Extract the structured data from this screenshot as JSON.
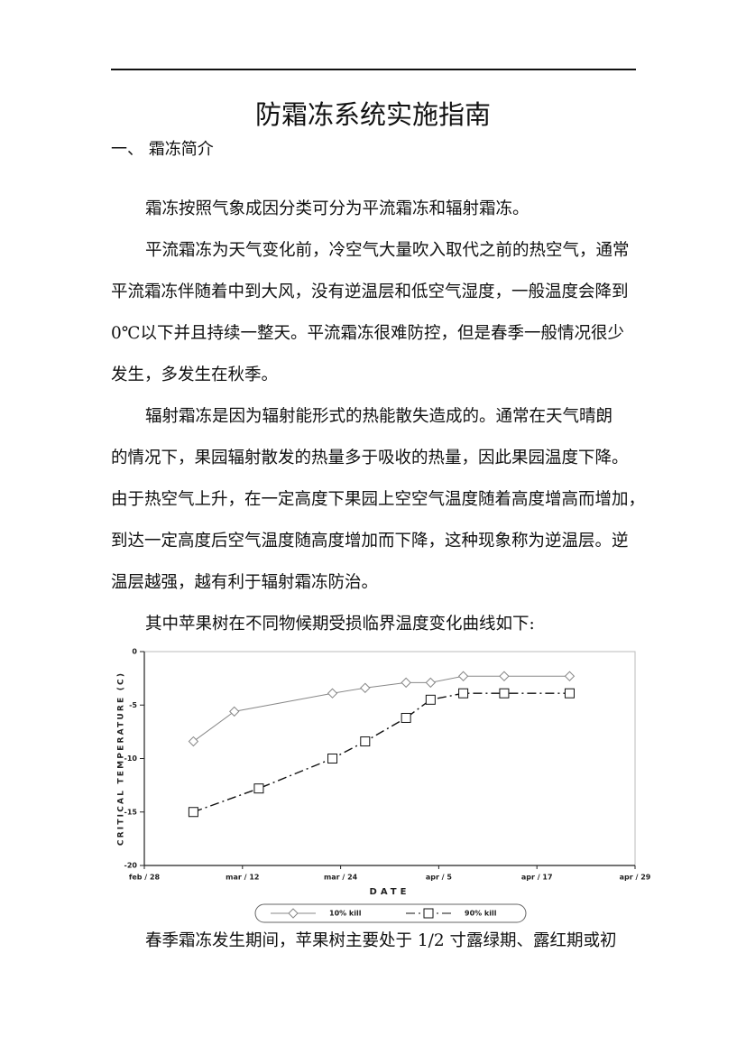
{
  "header": {
    "title": "防霜冻系统实施指南"
  },
  "section": {
    "heading": "一、 霜冻简介"
  },
  "paragraphs": [
    [
      "霜冻按照气象成因分类可分为平流霜冻和辐射霜冻。"
    ],
    [
      "平流霜冻为天气变化前，冷空气大量吹入取代之前的热空气，通常",
      "平流霜冻伴随着中到大风，没有逆温层和低空气湿度，一般温度会降到",
      "0℃以下并且持续一整天。平流霜冻很难防控，但是春季一般情况很少",
      "发生，多发生在秋季。"
    ],
    [
      "辐射霜冻是因为辐射能形式的热能散失造成的。通常在天气晴朗",
      "的情况下，果园辐射散发的热量多于吸收的热量，因此果园温度下降。",
      "由于热空气上升，在一定高度下果园上空空气温度随着高度增高而增加，",
      "到达一定高度后空气温度随高度增加而下降，这种现象称为逆温层。逆",
      "温层越强，越有利于辐射霜冻防治。"
    ],
    [
      "其中苹果树在不同物候期受损临界温度变化曲线如下:"
    ]
  ],
  "chart_data": {
    "type": "line",
    "xlabel": "DATE",
    "ylabel": "CRITICAL TEMPERATURE (C)",
    "xlim": [
      0,
      60
    ],
    "xticks": [
      {
        "value": 0,
        "label": "feb / 28"
      },
      {
        "value": 12,
        "label": "mar / 12"
      },
      {
        "value": 24,
        "label": "mar / 24"
      },
      {
        "value": 36,
        "label": "apr / 5"
      },
      {
        "value": 48,
        "label": "apr / 17"
      },
      {
        "value": 60,
        "label": "apr / 29"
      }
    ],
    "ylim": [
      -20,
      0
    ],
    "yticks": [
      0,
      -5,
      -10,
      -15,
      -20
    ],
    "grid": false,
    "legend": "bottom",
    "series": [
      {
        "name": "10% kill",
        "color": "#888888",
        "dash": "solid",
        "marker": "diamond",
        "x": [
          6,
          11,
          23,
          27,
          32,
          35,
          39,
          44,
          52
        ],
        "values": [
          -8.4,
          -5.6,
          -3.9,
          -3.4,
          -2.9,
          -2.9,
          -2.3,
          -2.3,
          -2.3
        ]
      },
      {
        "name": "90% kill",
        "color": "#111111",
        "dash": "dash-dot",
        "marker": "square",
        "x": [
          6,
          14,
          23,
          27,
          32,
          35,
          39,
          44,
          52
        ],
        "values": [
          -15.0,
          -12.8,
          -10.0,
          -8.4,
          -6.2,
          -4.5,
          -3.9,
          -3.9,
          -3.9
        ]
      }
    ]
  },
  "after_chart": [
    "春季霜冻发生期间，苹果树主要处于 1/2 寸露绿期、露红期或初"
  ]
}
